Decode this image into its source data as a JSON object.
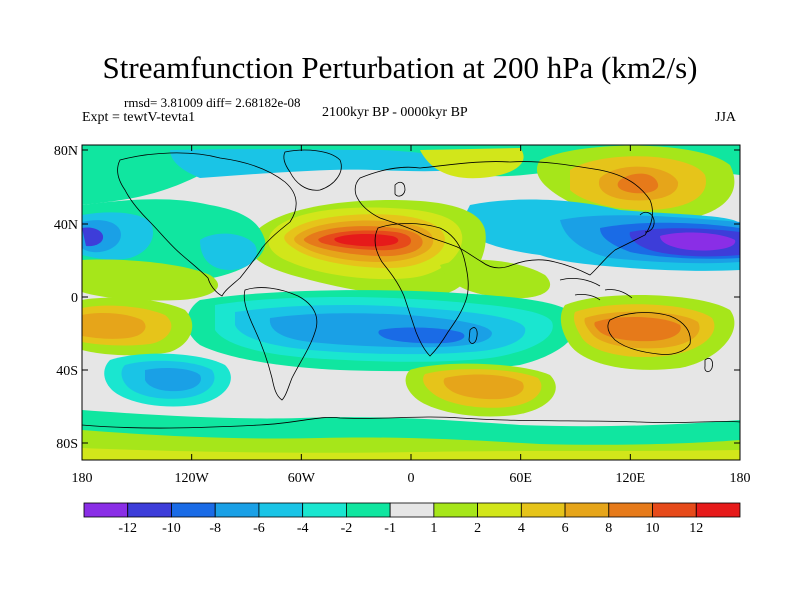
{
  "title": "Streamfunction Perturbation at 200 hPa (km2/s)",
  "stats": "rmsd= 3.81009 diff= 2.68182e-08",
  "experiment": "Expt = tewtV-tevta1",
  "period": "2100kyr BP - 0000kyr BP",
  "season": "JJA",
  "axes": {
    "lat_ticks": [
      "80N",
      "40N",
      "0",
      "40S",
      "80S"
    ],
    "lon_ticks": [
      "180",
      "120W",
      "60W",
      "0",
      "60E",
      "120E",
      "180"
    ]
  },
  "colorbar": {
    "labels": [
      "-12",
      "-10",
      "-8",
      "-6",
      "-4",
      "-2",
      "-1",
      "1",
      "2",
      "4",
      "6",
      "8",
      "10",
      "12"
    ],
    "colors": [
      "#8a2ee6",
      "#3d3dd9",
      "#1a6be6",
      "#1aa0e6",
      "#1ac4e6",
      "#1ae6d0",
      "#10e6a0",
      "#e6e6e6",
      "#a6e61a",
      "#d2e61a",
      "#e6c41a",
      "#e6a51a",
      "#e67a1a",
      "#e64a1a",
      "#e61a1a"
    ]
  },
  "colors": {
    "background": "#e6e6e6",
    "coast": "#000000"
  }
}
